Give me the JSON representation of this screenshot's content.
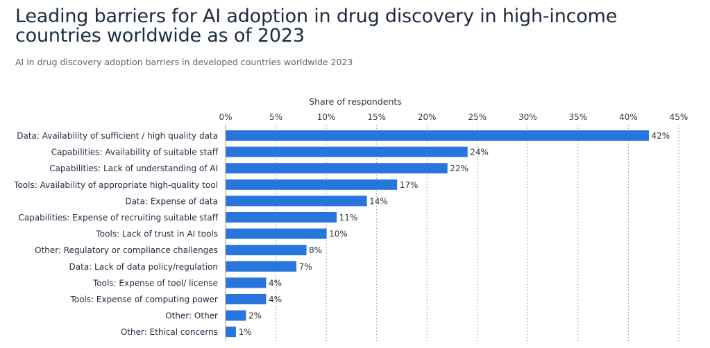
{
  "header": {
    "title_line1": "Leading barriers for AI adoption in drug discovery in high-income",
    "title_line2": "countries worldwide as of 2023",
    "subtitle": "AI in drug discovery adoption barriers in developed countries worldwide 2023"
  },
  "colors": {
    "bar": "#2876dd",
    "text": "#1c2b3f",
    "axis_text": "#333333",
    "grid": "#888888"
  },
  "chart_data": {
    "type": "bar",
    "orientation": "horizontal",
    "title": "Leading barriers for AI adoption in drug discovery in high-income countries worldwide as of 2023",
    "subtitle": "AI in drug discovery adoption barriers in developed countries worldwide 2023",
    "xlabel": "Share of respondents",
    "ylabel": "",
    "xlim": [
      0,
      45
    ],
    "xticks": [
      0,
      5,
      10,
      15,
      20,
      25,
      30,
      35,
      40,
      45
    ],
    "xtick_labels": [
      "0%",
      "5%",
      "10%",
      "15%",
      "20%",
      "25%",
      "30%",
      "35%",
      "40%",
      "45%"
    ],
    "x_axis_position": "top",
    "grid": true,
    "categories": [
      "Data: Availability of sufficient / high quality data",
      "Capabilities: Availability of suitable staff",
      "Capabilities: Lack of understanding of AI",
      "Tools: Availability of appropriate high-quality tool",
      "Data: Expense of data",
      "Capabilities: Expense of recruiting suitable staff",
      "Tools: Lack of trust in AI tools",
      "Other: Regulatory or compliance challenges",
      "Data: Lack of data policy/regulation",
      "Tools: Expense of tool/ license",
      "Tools: Expense of computing power",
      "Other: Other",
      "Other: Ethical concerns"
    ],
    "values": [
      42,
      24,
      22,
      17,
      14,
      11,
      10,
      8,
      7,
      4,
      4,
      2,
      1
    ],
    "value_labels": [
      "42%",
      "24%",
      "22%",
      "17%",
      "14%",
      "11%",
      "10%",
      "8%",
      "7%",
      "4%",
      "4%",
      "2%",
      "1%"
    ],
    "unit": "%"
  }
}
